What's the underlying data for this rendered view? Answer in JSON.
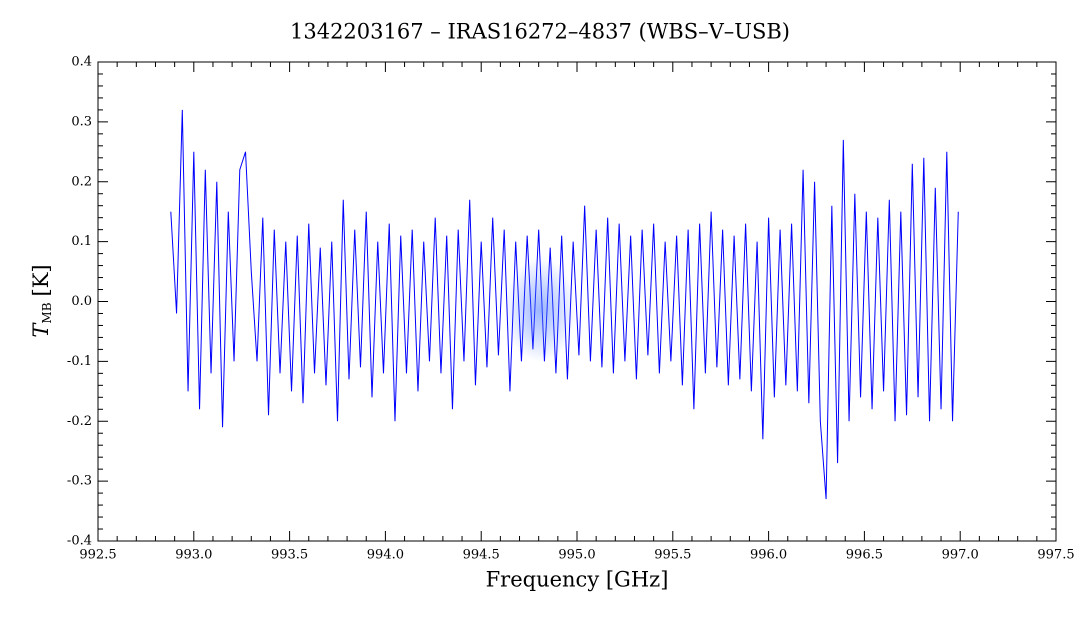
{
  "chart_data": {
    "type": "line",
    "title": "1342203167 – IRAS16272–4837 (WBS–V–USB)",
    "xlabel": "Frequency [GHz]",
    "ylabel": {
      "main": "T",
      "sub": "MB",
      "unit": "[K]"
    },
    "color": "#0000ff",
    "xlim": [
      992.5,
      997.5
    ],
    "xticks": [
      992.5,
      {
        "value": 993,
        "label": "993.0"
      },
      993.5,
      {
        "value": 994,
        "label": "994.0"
      },
      994.5,
      {
        "value": 995,
        "label": "995.0"
      },
      995.5,
      {
        "value": 996,
        "label": "996.0"
      },
      996.5,
      {
        "value": 997,
        "label": "997.0"
      },
      997.5
    ],
    "ylim": [
      -0.4,
      0.4
    ],
    "yticks": [
      -0.4,
      -0.3,
      -0.2,
      -0.1,
      {
        "value": 0,
        "label": "0.0"
      },
      0.1,
      0.2,
      0.3,
      0.4
    ],
    "x": [
      992.88,
      992.91,
      992.94,
      992.97,
      993.0,
      993.03,
      993.06,
      993.09,
      993.12,
      993.15,
      993.18,
      993.21,
      993.24,
      993.27,
      993.3,
      993.33,
      993.36,
      993.39,
      993.42,
      993.45,
      993.48,
      993.51,
      993.54,
      993.57,
      993.6,
      993.63,
      993.66,
      993.69,
      993.72,
      993.75,
      993.78,
      993.81,
      993.84,
      993.87,
      993.9,
      993.93,
      993.96,
      993.99,
      994.02,
      994.05,
      994.08,
      994.11,
      994.14,
      994.17,
      994.2,
      994.23,
      994.26,
      994.29,
      994.32,
      994.35,
      994.38,
      994.41,
      994.44,
      994.47,
      994.5,
      994.53,
      994.56,
      994.59,
      994.62,
      994.65,
      994.68,
      994.71,
      994.74,
      994.77,
      994.8,
      994.83,
      994.86,
      994.89,
      994.92,
      994.95,
      994.98,
      995.01,
      995.04,
      995.07,
      995.1,
      995.13,
      995.16,
      995.19,
      995.22,
      995.25,
      995.28,
      995.31,
      995.34,
      995.37,
      995.4,
      995.43,
      995.46,
      995.49,
      995.52,
      995.55,
      995.58,
      995.61,
      995.64,
      995.67,
      995.7,
      995.73,
      995.76,
      995.79,
      995.82,
      995.85,
      995.88,
      995.91,
      995.94,
      995.97,
      996.0,
      996.03,
      996.06,
      996.09,
      996.12,
      996.15,
      996.18,
      996.21,
      996.24,
      996.27,
      996.3,
      996.33,
      996.36,
      996.39,
      996.42,
      996.45,
      996.48,
      996.51,
      996.54,
      996.57,
      996.6,
      996.63,
      996.66,
      996.69,
      996.72,
      996.75,
      996.78,
      996.81,
      996.84,
      996.87,
      996.9,
      996.93,
      996.96,
      996.99
    ],
    "values": [
      0.15,
      -0.02,
      0.32,
      -0.15,
      0.25,
      -0.18,
      0.22,
      -0.12,
      0.2,
      -0.21,
      0.15,
      -0.1,
      0.22,
      0.25,
      0.05,
      -0.1,
      0.14,
      -0.19,
      0.12,
      -0.12,
      0.1,
      -0.15,
      0.11,
      -0.17,
      0.13,
      -0.12,
      0.09,
      -0.14,
      0.1,
      -0.2,
      0.17,
      -0.13,
      0.12,
      -0.11,
      0.15,
      -0.16,
      0.1,
      -0.12,
      0.13,
      -0.2,
      0.11,
      -0.12,
      0.12,
      -0.15,
      0.1,
      -0.1,
      0.14,
      -0.12,
      0.11,
      -0.18,
      0.12,
      -0.1,
      0.17,
      -0.14,
      0.1,
      -0.11,
      0.14,
      -0.09,
      0.12,
      -0.15,
      0.1,
      -0.1,
      0.11,
      -0.08,
      0.12,
      -0.1,
      0.09,
      -0.12,
      0.11,
      -0.13,
      0.1,
      -0.09,
      0.16,
      -0.1,
      0.12,
      -0.11,
      0.14,
      -0.12,
      0.13,
      -0.1,
      0.11,
      -0.13,
      0.12,
      -0.09,
      0.13,
      -0.12,
      0.1,
      -0.1,
      0.11,
      -0.14,
      0.12,
      -0.18,
      0.13,
      -0.12,
      0.15,
      -0.11,
      0.12,
      -0.14,
      0.11,
      -0.13,
      0.13,
      -0.15,
      0.1,
      -0.23,
      0.14,
      -0.16,
      0.12,
      -0.14,
      0.13,
      -0.15,
      0.22,
      -0.17,
      0.2,
      -0.2,
      -0.33,
      0.16,
      -0.27,
      0.27,
      -0.2,
      0.18,
      -0.16,
      0.15,
      -0.18,
      0.14,
      -0.15,
      0.17,
      -0.2,
      0.15,
      -0.19,
      0.23,
      -0.16,
      0.24,
      -0.2,
      0.19,
      -0.18,
      0.25,
      -0.2,
      0.15
    ]
  }
}
